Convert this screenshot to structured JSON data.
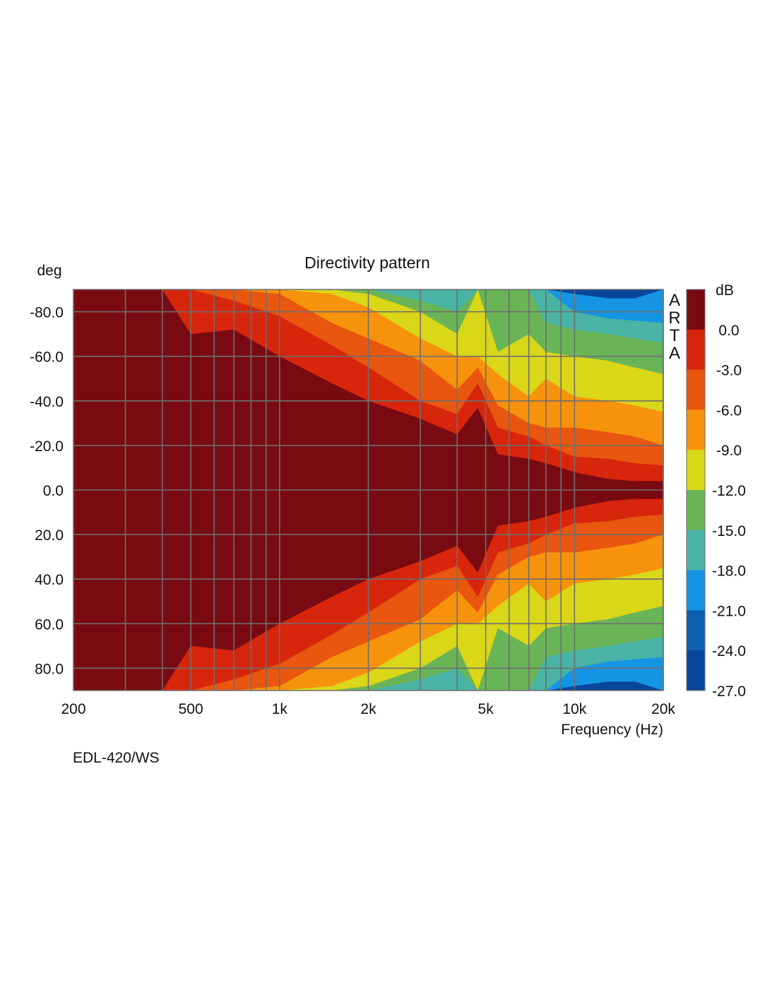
{
  "chart_data": {
    "type": "heatmap",
    "title": "Directivity pattern",
    "xlabel": "Frequency (Hz)",
    "ylabel": "deg",
    "x_scale": "log",
    "xlim": [
      200,
      20000
    ],
    "ylim": [
      -90,
      90
    ],
    "x_ticks": [
      200,
      500,
      1000,
      2000,
      5000,
      10000,
      20000
    ],
    "x_tick_labels": [
      "200",
      "500",
      "1k",
      "2k",
      "5k",
      "10k",
      "20k"
    ],
    "y_ticks": [
      -80,
      -60,
      -40,
      -20,
      0,
      20,
      40,
      60,
      80
    ],
    "y_tick_labels": [
      "-80.0",
      "-60.0",
      "-40.0",
      "-20.0",
      "0.0",
      "20.0",
      "40.0",
      "60.0",
      "80.0"
    ],
    "x_minor_gridlines": [
      300,
      400,
      600,
      700,
      800,
      900,
      3000,
      4000,
      6000,
      7000,
      8000,
      9000
    ],
    "grid": true,
    "colorbar": {
      "unit": "dB",
      "tick_labels": [
        "0.0",
        "-3.0",
        "-6.0",
        "-9.0",
        "-12.0",
        "-15.0",
        "-18.0",
        "-21.0",
        "-24.0",
        "-27.0"
      ],
      "levels": [
        {
          "min": 0,
          "color": "#7a0a12"
        },
        {
          "min": -3,
          "color": "#d7260c"
        },
        {
          "min": -6,
          "color": "#e8560f"
        },
        {
          "min": -9,
          "color": "#f6920c"
        },
        {
          "min": -12,
          "color": "#d9d717"
        },
        {
          "min": -15,
          "color": "#6ab458"
        },
        {
          "min": -18,
          "color": "#49b3a5"
        },
        {
          "min": -21,
          "color": "#1594e4"
        },
        {
          "min": -24,
          "color": "#0d5fb0"
        },
        {
          "min": -27,
          "color": "#07469b"
        }
      ]
    },
    "contour_frequencies": [
      200,
      400,
      500,
      700,
      1000,
      1500,
      2000,
      3000,
      4000,
      4700,
      5500,
      7000,
      8000,
      10000,
      13000,
      16000,
      20000
    ],
    "contour_boundaries_deg": {
      "0": [
        90,
        90,
        70,
        72,
        60,
        48,
        40,
        32,
        25,
        37,
        16,
        14,
        12,
        8,
        5,
        4,
        4
      ],
      "-3": [
        90,
        90,
        90,
        85,
        78,
        65,
        55,
        40,
        34,
        48,
        28,
        24,
        20,
        15,
        14,
        12,
        11
      ],
      "-6": [
        90,
        90,
        90,
        90,
        88,
        75,
        68,
        58,
        45,
        55,
        38,
        30,
        28,
        28,
        26,
        24,
        20
      ],
      "-9": [
        90,
        90,
        90,
        90,
        90,
        88,
        82,
        68,
        60,
        60,
        52,
        42,
        50,
        42,
        40,
        38,
        35
      ],
      "-12": [
        90,
        90,
        90,
        90,
        90,
        90,
        88,
        80,
        70,
        90,
        62,
        70,
        62,
        60,
        58,
        55,
        52
      ],
      "-15": [
        90,
        90,
        90,
        90,
        90,
        90,
        90,
        85,
        80,
        90,
        90,
        90,
        75,
        72,
        70,
        68,
        66
      ],
      "-18": [
        90,
        90,
        90,
        90,
        90,
        90,
        90,
        90,
        90,
        90,
        90,
        90,
        90,
        80,
        77,
        76,
        75
      ],
      "-21": [
        90,
        90,
        90,
        90,
        90,
        90,
        90,
        90,
        90,
        90,
        90,
        90,
        90,
        88,
        86,
        86,
        90
      ]
    },
    "side_label": "ARTA",
    "annotation": "EDL-420/WS"
  }
}
